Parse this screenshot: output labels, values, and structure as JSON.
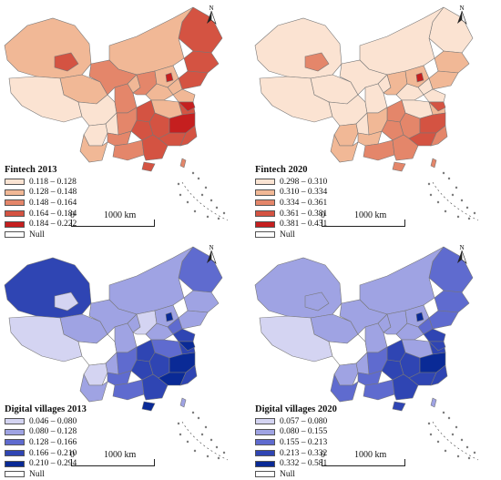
{
  "null_label": "Null",
  "scale": {
    "zero": "0",
    "distance": "1000 km"
  },
  "compass": {
    "label": "N",
    "icon": "north-arrow-icon"
  },
  "colors": {
    "null": "#ffffff",
    "border": "#777777"
  },
  "maps": [
    {
      "id": "fintech-2013",
      "legend_title": "Fintech 2013",
      "classes": [
        "0.118 – 0.128",
        "0.128 – 0.148",
        "0.148 – 0.164",
        "0.164 – 0.184",
        "0.184 – 0.222"
      ],
      "palette": [
        "#fbe3d2",
        "#f1b896",
        "#e4866a",
        "#d45342",
        "#c51f1f"
      ],
      "region_classes": [
        3,
        3,
        3,
        1,
        1,
        1,
        0,
        2,
        1,
        0,
        2,
        2,
        1,
        1,
        1,
        1,
        3,
        1,
        3,
        0,
        0,
        3,
        3,
        2,
        1,
        2,
        3,
        4,
        3,
        3,
        2,
        4,
        4,
        2,
        3,
        3
      ]
    },
    {
      "id": "fintech-2020",
      "legend_title": "Fintech 2020",
      "classes": [
        "0.298 – 0.310",
        "0.310 – 0.334",
        "0.334 – 0.361",
        "0.361 – 0.381",
        "0.381 – 0.431"
      ],
      "palette": [
        "#fbe3d2",
        "#f1b896",
        "#e4866a",
        "#d45342",
        "#c51f1f"
      ],
      "region_classes": [
        0,
        1,
        1,
        0,
        0,
        0,
        0,
        0,
        0,
        0,
        0,
        1,
        1,
        0,
        0,
        0,
        1,
        0,
        2,
        0,
        1,
        2,
        2,
        1,
        1,
        2,
        2,
        3,
        3,
        2,
        1,
        3,
        4,
        2,
        2,
        2
      ]
    },
    {
      "id": "digital-villages-2013",
      "legend_title": "Digital villages 2013",
      "classes": [
        "0.046 – 0.080",
        "0.080 – 0.128",
        "0.128 – 0.166",
        "0.166 – 0.210",
        "0.210 – 0.294"
      ],
      "palette": [
        "#d4d4f2",
        "#9fa3e3",
        "#5f6bcf",
        "#2f45b3",
        "#0a2a96"
      ],
      "region_classes": [
        2,
        1,
        1,
        1,
        3,
        1,
        0,
        1,
        1,
        -1,
        1,
        0,
        1,
        2,
        1,
        3,
        3,
        2,
        3,
        1,
        0,
        3,
        3,
        2,
        1,
        2,
        3,
        4,
        4,
        3,
        2,
        4,
        4,
        1,
        4,
        0
      ]
    },
    {
      "id": "digital-villages-2020",
      "legend_title": "Digital villages 2020",
      "classes": [
        "0.057 – 0.080",
        "0.080 – 0.155",
        "0.155 – 0.213",
        "0.213 – 0.332",
        "0.332 – 0.581"
      ],
      "palette": [
        "#d4d4f2",
        "#9fa3e3",
        "#5f6bcf",
        "#2f45b3",
        "#0a2a96"
      ],
      "region_classes": [
        2,
        2,
        2,
        1,
        1,
        1,
        0,
        1,
        1,
        -1,
        1,
        1,
        1,
        2,
        1,
        3,
        3,
        1,
        3,
        1,
        1,
        3,
        3,
        2,
        2,
        2,
        3,
        4,
        3,
        3,
        2,
        3,
        4,
        1,
        3,
        1
      ]
    }
  ]
}
